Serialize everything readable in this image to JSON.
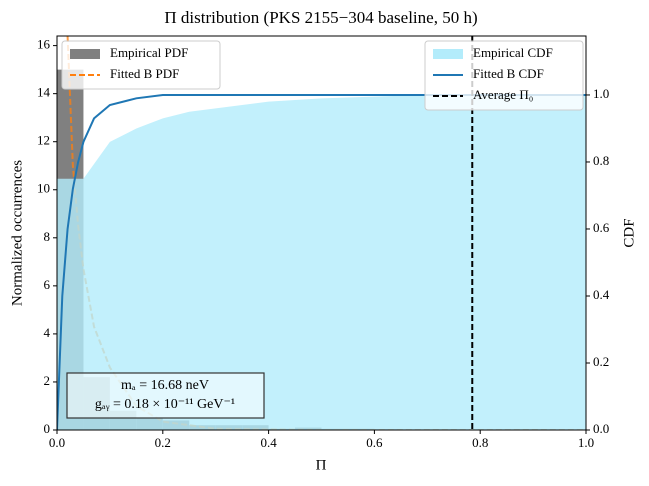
{
  "chart_data": {
    "type": "histogram",
    "title": "Π distribution (PKS 2155−304 baseline, 50 h)",
    "x_label": "Π",
    "y_label": "Normalized occurrences",
    "y2_label": "CDF",
    "xlim": [
      0,
      1
    ],
    "ylim": [
      0,
      16.4
    ],
    "y2lim": [
      0,
      1.176
    ],
    "xticks": [
      {
        "value": 0,
        "label": "0.0"
      },
      {
        "value": 0.2,
        "label": "0.2"
      },
      {
        "value": 0.4,
        "label": "0.4"
      },
      {
        "value": 0.6,
        "label": "0.6"
      },
      {
        "value": 0.8,
        "label": "0.8"
      },
      {
        "value": 1,
        "label": "1.0"
      }
    ],
    "yticks": [
      0,
      2,
      4,
      6,
      8,
      10,
      12,
      14,
      16
    ],
    "y2ticks": [
      {
        "value": 0,
        "label": "0.0"
      },
      {
        "value": 0.2,
        "label": "0.2"
      },
      {
        "value": 0.4,
        "label": "0.4"
      },
      {
        "value": 0.6,
        "label": "0.6"
      },
      {
        "value": 0.8,
        "label": "0.8"
      },
      {
        "value": 1,
        "label": "1.0"
      }
    ],
    "bins": [
      0,
      0.05,
      0.1,
      0.15,
      0.2,
      0.25,
      0.3,
      0.35,
      0.4,
      0.45,
      0.5,
      0.55,
      0.6,
      0.65,
      0.7,
      0.75,
      0.8,
      0.85,
      0.9,
      0.95,
      1.0
    ],
    "series": [
      {
        "name": "Empirical PDF",
        "type": "histogram",
        "color": "#808080",
        "legend": "upper left",
        "values": [
          15,
          2.2,
          0.8,
          0.5,
          0.4,
          0.2,
          0.2,
          0.2,
          0.05,
          0.1,
          0.05,
          0.05,
          0.03,
          0,
          0,
          0,
          0,
          0,
          0,
          0
        ]
      },
      {
        "name": "Fitted B PDF",
        "type": "line",
        "dashed": true,
        "color": "#ff7f0e",
        "legend": "upper left",
        "x": [
          0.02,
          0.03,
          0.04,
          0.05,
          0.07,
          0.1,
          0.15,
          0.2,
          0.3,
          0.5,
          1.0
        ],
        "values": [
          16.4,
          11,
          8.5,
          6.7,
          4.3,
          2.6,
          1.0,
          0.35,
          0.05,
          0,
          0
        ]
      },
      {
        "name": "Empirical CDF",
        "type": "area",
        "axis": "y2",
        "color": "#b3ecfb",
        "legend": "upper right",
        "x": [
          0,
          0.05,
          0.1,
          0.15,
          0.2,
          0.25,
          0.3,
          0.35,
          0.4,
          0.5,
          0.6,
          0.7,
          1.0
        ],
        "values": [
          0.75,
          0.75,
          0.86,
          0.9,
          0.93,
          0.95,
          0.96,
          0.97,
          0.98,
          0.99,
          0.995,
          1.0,
          1.0
        ]
      },
      {
        "name": "Fitted B CDF",
        "type": "line",
        "axis": "y2",
        "color": "#1f77b4",
        "legend": "upper right",
        "x": [
          0,
          0.005,
          0.01,
          0.02,
          0.03,
          0.04,
          0.05,
          0.07,
          0.1,
          0.15,
          0.2,
          0.3,
          1.0
        ],
        "values": [
          0,
          0.2,
          0.4,
          0.6,
          0.72,
          0.8,
          0.86,
          0.93,
          0.97,
          0.99,
          1.0,
          1.0,
          1.0
        ]
      },
      {
        "name": "Average Π₀",
        "type": "vline",
        "dashed": true,
        "color": "#000000",
        "legend": "upper right",
        "x": 0.785
      }
    ],
    "annotation": [
      "mₐ = 16.68 neV",
      "gₐᵧ = 0.18 × 10⁻¹¹ GeV⁻¹"
    ]
  }
}
